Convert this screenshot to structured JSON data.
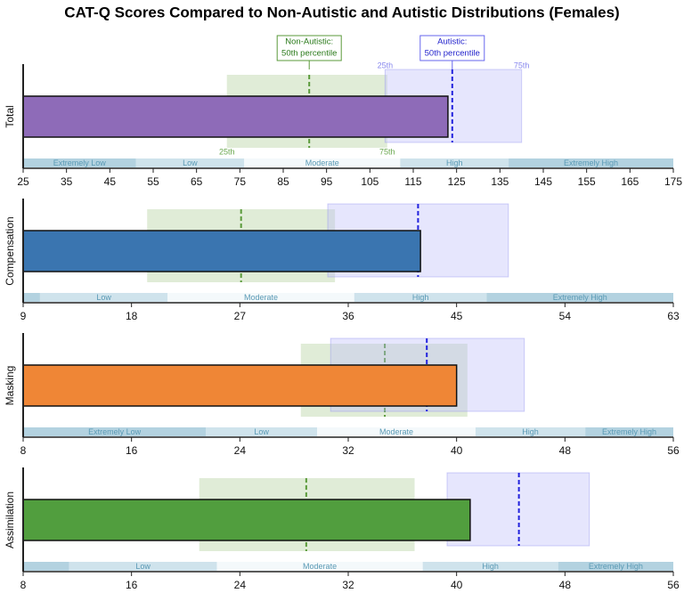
{
  "title": "CAT-Q Scores Compared to Non-Autistic and Autistic Distributions (Females)",
  "chart_data": [
    {
      "type": "bar",
      "orientation": "horizontal",
      "category": "Total",
      "value": 123,
      "color": "#8e6bb8",
      "xlim": [
        25,
        175
      ],
      "xticks": [
        25,
        35,
        45,
        55,
        65,
        75,
        85,
        95,
        105,
        115,
        125,
        135,
        145,
        155,
        165,
        175
      ],
      "non_autistic": {
        "p25": 72,
        "p50": 91,
        "p75": 109,
        "color": "#5a9a3a"
      },
      "autistic": {
        "p25": 108.5,
        "p50": 124,
        "p75": 140,
        "color": "#2222dd"
      },
      "annotations": {
        "non_autistic_median": [
          "Non-Autistic:",
          "50th percentile"
        ],
        "autistic_median": [
          "Autistic:",
          "50th percentile"
        ],
        "p25": "25th",
        "p75": "75th"
      },
      "ranges": {
        "labels": [
          "Extremely Low",
          "Low",
          "Moderate",
          "High",
          "Extremely High"
        ],
        "edges": [
          25,
          51,
          76,
          112,
          137,
          175
        ],
        "colors": [
          "#b3d2e0",
          "#cfe3ec",
          "#f4f9fb",
          "#cfe3ec",
          "#b3d2e0"
        ]
      }
    },
    {
      "type": "bar",
      "orientation": "horizontal",
      "category": "Compensation",
      "value": 42,
      "color": "#3a75b0",
      "xlim": [
        9,
        63
      ],
      "xticks": [
        9,
        18,
        27,
        36,
        45,
        54,
        63
      ],
      "non_autistic": {
        "p25": 19.3,
        "p50": 27.1,
        "p75": 34.9,
        "color": "#5a9a3a"
      },
      "autistic": {
        "p25": 34.3,
        "p50": 41.8,
        "p75": 49.3,
        "color": "#2222dd"
      },
      "ranges": {
        "labels": [
          null,
          "Low",
          "Moderate",
          "High",
          "Extremely High"
        ],
        "edges": [
          9,
          10.4,
          21,
          36.5,
          47.5,
          63
        ],
        "colors": [
          "#b3d2e0",
          "#cfe3ec",
          "#f4f9fb",
          "#cfe3ec",
          "#b3d2e0"
        ]
      }
    },
    {
      "type": "bar",
      "orientation": "horizontal",
      "category": "Masking",
      "value": 40,
      "color": "#ef8636",
      "xlim": [
        8,
        56
      ],
      "xticks": [
        8,
        16,
        24,
        32,
        40,
        48,
        56
      ],
      "non_autistic": {
        "p25": 28.5,
        "p50": 34.7,
        "p75": 40.8,
        "color": "#5a9a3a"
      },
      "autistic": {
        "p25": 30.7,
        "p50": 37.8,
        "p75": 45,
        "color": "#2222dd"
      },
      "ranges": {
        "labels": [
          "Extremely Low",
          "Low",
          "Moderate",
          "High",
          "Extremely High"
        ],
        "edges": [
          8,
          21.5,
          29.7,
          41.4,
          49.5,
          56
        ],
        "colors": [
          "#b3d2e0",
          "#cfe3ec",
          "#f4f9fb",
          "#cfe3ec",
          "#b3d2e0"
        ]
      }
    },
    {
      "type": "bar",
      "orientation": "horizontal",
      "category": "Assimilation",
      "value": 41,
      "color": "#519e3e",
      "xlim": [
        8,
        56
      ],
      "xticks": [
        8,
        16,
        24,
        32,
        40,
        48,
        56
      ],
      "non_autistic": {
        "p25": 21,
        "p50": 28.9,
        "p75": 36.9,
        "color": "#5a9a3a"
      },
      "autistic": {
        "p25": 39.3,
        "p50": 44.6,
        "p75": 49.8,
        "color": "#2222dd"
      },
      "ranges": {
        "labels": [
          null,
          "Low",
          "Moderate",
          "High",
          "Extremely High"
        ],
        "edges": [
          8,
          11.4,
          22.3,
          37.5,
          47.5,
          56
        ],
        "colors": [
          "#b3d2e0",
          "#cfe3ec",
          "#f4f9fb",
          "#cfe3ec",
          "#b3d2e0"
        ]
      }
    }
  ]
}
